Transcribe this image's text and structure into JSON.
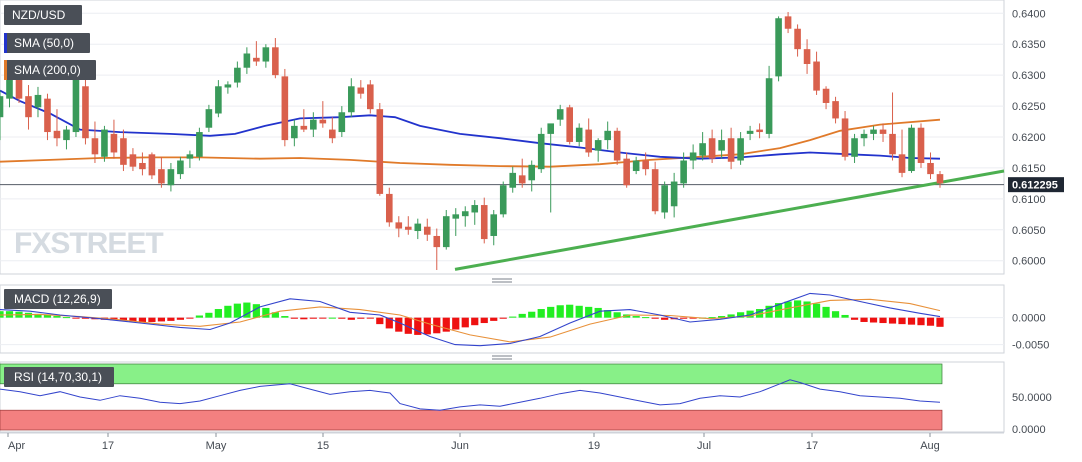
{
  "symbol": "NZD/USD",
  "watermark": "FXSTREET",
  "last_price_label": "0.612295",
  "colors": {
    "up": "#3a9a5a",
    "down": "#d9604c",
    "sma50": "#2233cc",
    "sma200": "#e07a2a",
    "trendline": "#4caf50",
    "macd_line": "#3344cc",
    "signal_line": "#e8913a",
    "hist_pos": "#22ee22",
    "hist_neg": "#ee1111",
    "rsi_overbought": "#88f088",
    "rsi_oversold": "#f38080",
    "rsi_line": "#3344cc"
  },
  "panels": {
    "price": {
      "indicators": [
        "SMA (50,0)",
        "SMA (200,0)"
      ],
      "y_ticks": [
        "0.6400",
        "0.6350",
        "0.6300",
        "0.6250",
        "0.6200",
        "0.6150",
        "0.6100",
        "0.6050",
        "0.6000"
      ]
    },
    "macd": {
      "label": "MACD (12,26,9)",
      "y_ticks": [
        "0.0000",
        "-0.0050"
      ]
    },
    "rsi": {
      "label": "RSI (14,70,30,1)",
      "y_ticks": [
        "50.0000",
        "0.0000"
      ]
    }
  },
  "x_ticks": [
    "Apr",
    "17",
    "May",
    "15",
    "Jun",
    "19",
    "Jul",
    "17",
    "Aug"
  ],
  "chart_data": {
    "type": "candlestick",
    "title": "NZD/USD",
    "ylim": [
      0.5985,
      0.6415
    ],
    "candles": [
      [
        0.6232,
        0.6275,
        0.6195,
        0.6266
      ],
      [
        0.6262,
        0.631,
        0.6248,
        0.6296
      ],
      [
        0.6298,
        0.6312,
        0.6255,
        0.6262
      ],
      [
        0.6266,
        0.6284,
        0.6212,
        0.6232
      ],
      [
        0.6248,
        0.6281,
        0.6232,
        0.6268
      ],
      [
        0.6262,
        0.627,
        0.6195,
        0.6208
      ],
      [
        0.621,
        0.6245,
        0.6185,
        0.6198
      ],
      [
        0.6195,
        0.6218,
        0.618,
        0.6212
      ],
      [
        0.6208,
        0.631,
        0.62,
        0.6295
      ],
      [
        0.6282,
        0.6302,
        0.6188,
        0.6198
      ],
      [
        0.6198,
        0.6225,
        0.6158,
        0.6172
      ],
      [
        0.6168,
        0.6218,
        0.616,
        0.6212
      ],
      [
        0.6205,
        0.6228,
        0.6165,
        0.6175
      ],
      [
        0.6198,
        0.6212,
        0.6145,
        0.6155
      ],
      [
        0.6172,
        0.6182,
        0.6145,
        0.6152
      ],
      [
        0.6158,
        0.6175,
        0.6138,
        0.6148
      ],
      [
        0.6172,
        0.6175,
        0.6132,
        0.6138
      ],
      [
        0.6148,
        0.6168,
        0.6118,
        0.6125
      ],
      [
        0.6122,
        0.6158,
        0.6112,
        0.6148
      ],
      [
        0.614,
        0.6168,
        0.6132,
        0.6162
      ],
      [
        0.6165,
        0.6178,
        0.615,
        0.6172
      ],
      [
        0.6168,
        0.6215,
        0.6162,
        0.6208
      ],
      [
        0.6215,
        0.6252,
        0.6208,
        0.6245
      ],
      [
        0.6238,
        0.6292,
        0.6232,
        0.6282
      ],
      [
        0.628,
        0.629,
        0.627,
        0.6285
      ],
      [
        0.6288,
        0.6322,
        0.628,
        0.6312
      ],
      [
        0.6312,
        0.6345,
        0.6302,
        0.6335
      ],
      [
        0.6328,
        0.6355,
        0.6315,
        0.6322
      ],
      [
        0.6322,
        0.635,
        0.6312,
        0.6345
      ],
      [
        0.6345,
        0.636,
        0.6295,
        0.63
      ],
      [
        0.6298,
        0.631,
        0.6185,
        0.6195
      ],
      [
        0.6198,
        0.6228,
        0.6185,
        0.6218
      ],
      [
        0.6218,
        0.6245,
        0.6208,
        0.6212
      ],
      [
        0.6212,
        0.624,
        0.62,
        0.6228
      ],
      [
        0.6228,
        0.6258,
        0.6215,
        0.6222
      ],
      [
        0.6212,
        0.6232,
        0.619,
        0.6198
      ],
      [
        0.6208,
        0.625,
        0.62,
        0.624
      ],
      [
        0.624,
        0.6295,
        0.6232,
        0.6282
      ],
      [
        0.628,
        0.6292,
        0.6262,
        0.627
      ],
      [
        0.6285,
        0.6292,
        0.6238,
        0.6245
      ],
      [
        0.6245,
        0.6255,
        0.6105,
        0.6108
      ],
      [
        0.6108,
        0.6118,
        0.6055,
        0.6062
      ],
      [
        0.6062,
        0.6072,
        0.6038,
        0.6052
      ],
      [
        0.6055,
        0.6072,
        0.6042,
        0.605
      ],
      [
        0.6048,
        0.6068,
        0.6035,
        0.606
      ],
      [
        0.6055,
        0.6068,
        0.6032,
        0.6042
      ],
      [
        0.604,
        0.6052,
        0.5985,
        0.6022
      ],
      [
        0.6022,
        0.6082,
        0.6018,
        0.6072
      ],
      [
        0.6068,
        0.6085,
        0.604,
        0.6075
      ],
      [
        0.6072,
        0.6088,
        0.6055,
        0.608
      ],
      [
        0.6078,
        0.6098,
        0.6058,
        0.609
      ],
      [
        0.609,
        0.6102,
        0.6028,
        0.6035
      ],
      [
        0.604,
        0.6082,
        0.6025,
        0.6075
      ],
      [
        0.6075,
        0.6128,
        0.607,
        0.6122
      ],
      [
        0.6118,
        0.6152,
        0.611,
        0.6142
      ],
      [
        0.6138,
        0.6165,
        0.6118,
        0.6125
      ],
      [
        0.613,
        0.6162,
        0.6112,
        0.6155
      ],
      [
        0.6148,
        0.6215,
        0.6142,
        0.6205
      ],
      [
        0.6205,
        0.622,
        0.6078,
        0.6222
      ],
      [
        0.6228,
        0.6252,
        0.6218,
        0.6245
      ],
      [
        0.6248,
        0.6252,
        0.6188,
        0.6192
      ],
      [
        0.6192,
        0.6222,
        0.6185,
        0.6215
      ],
      [
        0.6212,
        0.623,
        0.6168,
        0.6175
      ],
      [
        0.6178,
        0.6198,
        0.616,
        0.6195
      ],
      [
        0.6195,
        0.6225,
        0.618,
        0.621
      ],
      [
        0.621,
        0.6215,
        0.6155,
        0.6162
      ],
      [
        0.6165,
        0.6175,
        0.6118,
        0.6122
      ],
      [
        0.6145,
        0.6168,
        0.614,
        0.6162
      ],
      [
        0.6162,
        0.6175,
        0.6138,
        0.6148
      ],
      [
        0.6148,
        0.616,
        0.6075,
        0.608
      ],
      [
        0.6078,
        0.6128,
        0.6068,
        0.6122
      ],
      [
        0.6088,
        0.6142,
        0.607,
        0.6128
      ],
      [
        0.6125,
        0.6175,
        0.6118,
        0.6162
      ],
      [
        0.6162,
        0.6188,
        0.6148,
        0.6175
      ],
      [
        0.617,
        0.6208,
        0.6162,
        0.619
      ],
      [
        0.6198,
        0.6212,
        0.6158,
        0.6165
      ],
      [
        0.6178,
        0.6212,
        0.6165,
        0.6195
      ],
      [
        0.6198,
        0.6215,
        0.6148,
        0.616
      ],
      [
        0.6162,
        0.6208,
        0.6155,
        0.6198
      ],
      [
        0.6205,
        0.6218,
        0.6195,
        0.621
      ],
      [
        0.6212,
        0.6222,
        0.6198,
        0.6208
      ],
      [
        0.6205,
        0.6315,
        0.6198,
        0.6295
      ],
      [
        0.6298,
        0.6395,
        0.629,
        0.6392
      ],
      [
        0.6395,
        0.6402,
        0.6368,
        0.6375
      ],
      [
        0.6375,
        0.6382,
        0.633,
        0.6342
      ],
      [
        0.6342,
        0.6358,
        0.6302,
        0.6318
      ],
      [
        0.6322,
        0.6338,
        0.6268,
        0.6275
      ],
      [
        0.6278,
        0.6282,
        0.6245,
        0.6255
      ],
      [
        0.6258,
        0.6265,
        0.6222,
        0.623
      ],
      [
        0.623,
        0.6242,
        0.6162,
        0.6168
      ],
      [
        0.6168,
        0.6205,
        0.6158,
        0.6198
      ],
      [
        0.6198,
        0.6212,
        0.6185,
        0.6205
      ],
      [
        0.6205,
        0.6218,
        0.6195,
        0.6212
      ],
      [
        0.6212,
        0.6222,
        0.6192,
        0.6205
      ],
      [
        0.6205,
        0.6272,
        0.6162,
        0.6172
      ],
      [
        0.6172,
        0.6212,
        0.6135,
        0.6142
      ],
      [
        0.6145,
        0.622,
        0.6142,
        0.6215
      ],
      [
        0.6215,
        0.6222,
        0.615,
        0.6158
      ],
      [
        0.6158,
        0.6175,
        0.6132,
        0.614
      ],
      [
        0.614,
        0.6145,
        0.6118,
        0.6125
      ]
    ],
    "sma50": [
      [
        0,
        0.6275
      ],
      [
        20,
        0.6258
      ],
      [
        50,
        0.6238
      ],
      [
        80,
        0.6212
      ],
      [
        120,
        0.6208
      ],
      [
        170,
        0.6205
      ],
      [
        210,
        0.6202
      ],
      [
        235,
        0.6205
      ],
      [
        265,
        0.6218
      ],
      [
        300,
        0.623
      ],
      [
        340,
        0.6232
      ],
      [
        370,
        0.6235
      ],
      [
        395,
        0.6232
      ],
      [
        420,
        0.6218
      ],
      [
        460,
        0.6205
      ],
      [
        500,
        0.6198
      ],
      [
        540,
        0.619
      ],
      [
        580,
        0.6183
      ],
      [
        620,
        0.6175
      ],
      [
        660,
        0.6168
      ],
      [
        700,
        0.6165
      ],
      [
        740,
        0.6167
      ],
      [
        780,
        0.6172
      ],
      [
        810,
        0.6175
      ],
      [
        850,
        0.6172
      ],
      [
        880,
        0.617
      ],
      [
        910,
        0.6166
      ],
      [
        940,
        0.6165
      ]
    ],
    "sma200": [
      [
        0,
        0.616
      ],
      [
        50,
        0.6163
      ],
      [
        100,
        0.6166
      ],
      [
        150,
        0.6167
      ],
      [
        200,
        0.6167
      ],
      [
        260,
        0.6165
      ],
      [
        300,
        0.6166
      ],
      [
        350,
        0.6163
      ],
      [
        400,
        0.6158
      ],
      [
        450,
        0.6155
      ],
      [
        500,
        0.6153
      ],
      [
        550,
        0.6152
      ],
      [
        600,
        0.6156
      ],
      [
        650,
        0.6163
      ],
      [
        700,
        0.6168
      ],
      [
        740,
        0.6172
      ],
      [
        780,
        0.6182
      ],
      [
        810,
        0.6195
      ],
      [
        840,
        0.621
      ],
      [
        880,
        0.622
      ],
      [
        940,
        0.6228
      ]
    ],
    "trendline": [
      [
        455,
        0.5986
      ],
      [
        1004,
        0.6145
      ]
    ],
    "macd": {
      "ylim": [
        -0.006,
        0.0055
      ],
      "histogram": [
        0.0012,
        0.0012,
        0.0011,
        0.0009,
        0.0007,
        0.0005,
        0.0003,
        0.0001,
        -0.0001,
        -0.0002,
        -0.0003,
        -0.0004,
        -0.0005,
        -0.0006,
        -0.0007,
        -0.0008,
        -0.0008,
        -0.0007,
        -0.0006,
        -0.0004,
        -0.0001,
        0.0004,
        0.0009,
        0.0016,
        0.0022,
        0.0026,
        0.0028,
        0.0025,
        0.0018,
        0.001,
        0.0003,
        -0.0002,
        -0.0003,
        -0.0002,
        -0.0001,
        0.0,
        -0.0002,
        -0.0004,
        -0.0002,
        -0.0001,
        -0.0012,
        -0.002,
        -0.0026,
        -0.003,
        -0.0032,
        -0.0031,
        -0.0029,
        -0.0026,
        -0.0022,
        -0.0018,
        -0.0014,
        -0.001,
        -0.0006,
        -0.0002,
        0.0002,
        0.0007,
        0.0011,
        0.0016,
        0.002,
        0.0023,
        0.0024,
        0.0022,
        0.002,
        0.0018,
        0.0014,
        0.001,
        0.0006,
        0.0003,
        0.0001,
        -0.0002,
        -0.0004,
        -0.0003,
        -0.0002,
        -0.0001,
        0.0,
        0.0001,
        0.0003,
        0.0006,
        0.001,
        0.0013,
        0.0016,
        0.0022,
        0.0027,
        0.003,
        0.0032,
        0.003,
        0.0026,
        0.002,
        0.0012,
        0.0005,
        -0.0004,
        -0.0008,
        -0.0009,
        -0.001,
        -0.0011,
        -0.0012,
        -0.0013,
        -0.0014,
        -0.0015,
        -0.0017
      ],
      "macd_line": [
        [
          0,
          0.0015
        ],
        [
          30,
          0.0012
        ],
        [
          60,
          0.0005
        ],
        [
          100,
          -0.0002
        ],
        [
          140,
          -0.001
        ],
        [
          180,
          -0.0018
        ],
        [
          210,
          -0.0022
        ],
        [
          230,
          -0.001
        ],
        [
          260,
          0.002
        ],
        [
          290,
          0.0035
        ],
        [
          320,
          0.003
        ],
        [
          350,
          0.001
        ],
        [
          380,
          0.0005
        ],
        [
          400,
          -0.001
        ],
        [
          430,
          -0.0035
        ],
        [
          455,
          -0.005
        ],
        [
          480,
          -0.0052
        ],
        [
          510,
          -0.0048
        ],
        [
          540,
          -0.0035
        ],
        [
          570,
          -0.001
        ],
        [
          600,
          0.0012
        ],
        [
          630,
          0.0015
        ],
        [
          660,
          0.0005
        ],
        [
          690,
          -0.0008
        ],
        [
          720,
          -0.0003
        ],
        [
          750,
          0.0005
        ],
        [
          780,
          0.0025
        ],
        [
          810,
          0.0045
        ],
        [
          830,
          0.0042
        ],
        [
          860,
          0.003
        ],
        [
          890,
          0.0018
        ],
        [
          920,
          0.0008
        ],
        [
          940,
          0.0002
        ]
      ],
      "signal_line": [
        [
          0,
          0.0005
        ],
        [
          40,
          0.0006
        ],
        [
          80,
          0.0002
        ],
        [
          120,
          -0.0004
        ],
        [
          160,
          -0.0012
        ],
        [
          200,
          -0.0016
        ],
        [
          240,
          -0.0008
        ],
        [
          280,
          0.0012
        ],
        [
          320,
          0.002
        ],
        [
          360,
          0.0015
        ],
        [
          400,
          0.0005
        ],
        [
          430,
          -0.0012
        ],
        [
          470,
          -0.0032
        ],
        [
          510,
          -0.0045
        ],
        [
          550,
          -0.0036
        ],
        [
          590,
          -0.0012
        ],
        [
          630,
          0.0005
        ],
        [
          670,
          0.0004
        ],
        [
          710,
          -0.0002
        ],
        [
          750,
          0.0003
        ],
        [
          790,
          0.0018
        ],
        [
          830,
          0.0032
        ],
        [
          870,
          0.0034
        ],
        [
          910,
          0.0026
        ],
        [
          940,
          0.0013
        ]
      ]
    },
    "rsi": {
      "ylim": [
        0,
        100
      ],
      "overbought": 70,
      "oversold": 30,
      "line": [
        [
          0,
          62
        ],
        [
          20,
          58
        ],
        [
          40,
          52
        ],
        [
          60,
          58
        ],
        [
          80,
          50
        ],
        [
          100,
          45
        ],
        [
          120,
          52
        ],
        [
          140,
          48
        ],
        [
          160,
          42
        ],
        [
          180,
          40
        ],
        [
          200,
          44
        ],
        [
          220,
          52
        ],
        [
          240,
          60
        ],
        [
          260,
          66
        ],
        [
          290,
          70
        ],
        [
          310,
          62
        ],
        [
          330,
          54
        ],
        [
          350,
          58
        ],
        [
          370,
          60
        ],
        [
          390,
          56
        ],
        [
          400,
          40
        ],
        [
          420,
          32
        ],
        [
          440,
          30
        ],
        [
          460,
          35
        ],
        [
          480,
          38
        ],
        [
          500,
          36
        ],
        [
          520,
          42
        ],
        [
          540,
          48
        ],
        [
          560,
          55
        ],
        [
          580,
          60
        ],
        [
          600,
          56
        ],
        [
          620,
          50
        ],
        [
          640,
          44
        ],
        [
          660,
          38
        ],
        [
          680,
          40
        ],
        [
          700,
          48
        ],
        [
          720,
          52
        ],
        [
          740,
          50
        ],
        [
          760,
          58
        ],
        [
          780,
          70
        ],
        [
          790,
          76
        ],
        [
          800,
          72
        ],
        [
          820,
          62
        ],
        [
          840,
          58
        ],
        [
          860,
          52
        ],
        [
          880,
          50
        ],
        [
          900,
          48
        ],
        [
          920,
          44
        ],
        [
          940,
          42
        ]
      ]
    }
  }
}
